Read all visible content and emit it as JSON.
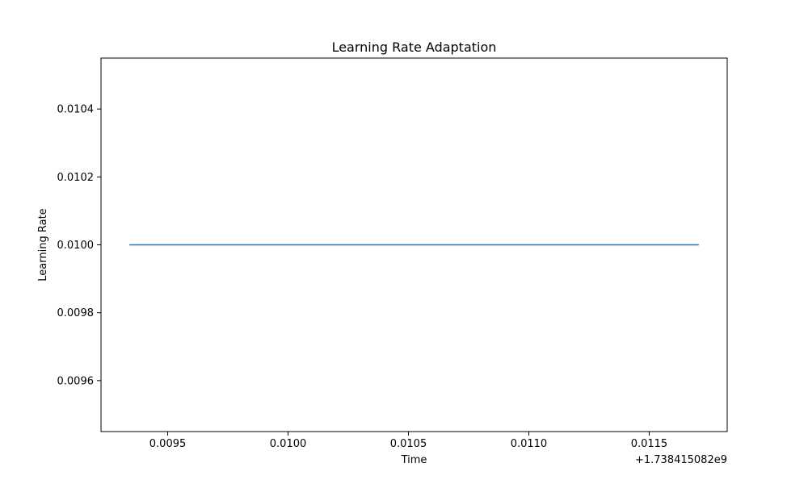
{
  "chart_data": {
    "type": "line",
    "title": "Learning Rate Adaptation",
    "xlabel": "Time",
    "ylabel": "Learning Rate",
    "x_offset_label": "+1.738415082e9",
    "xlim": [
      0.009223,
      0.011824
    ],
    "ylim": [
      0.00945,
      0.01055
    ],
    "x_ticks": [
      0.0095,
      0.01,
      0.0105,
      0.011,
      0.0115
    ],
    "x_tick_labels": [
      "0.0095",
      "0.0100",
      "0.0105",
      "0.0110",
      "0.0115"
    ],
    "y_ticks": [
      0.0096,
      0.0098,
      0.01,
      0.0102,
      0.0104
    ],
    "y_tick_labels": [
      "0.0096",
      "0.0098",
      "0.0100",
      "0.0102",
      "0.0104"
    ],
    "grid": false,
    "series": [
      {
        "color": "#1f77b4",
        "x": [
          0.009341,
          0.011706
        ],
        "y": [
          0.01,
          0.01
        ]
      }
    ]
  }
}
